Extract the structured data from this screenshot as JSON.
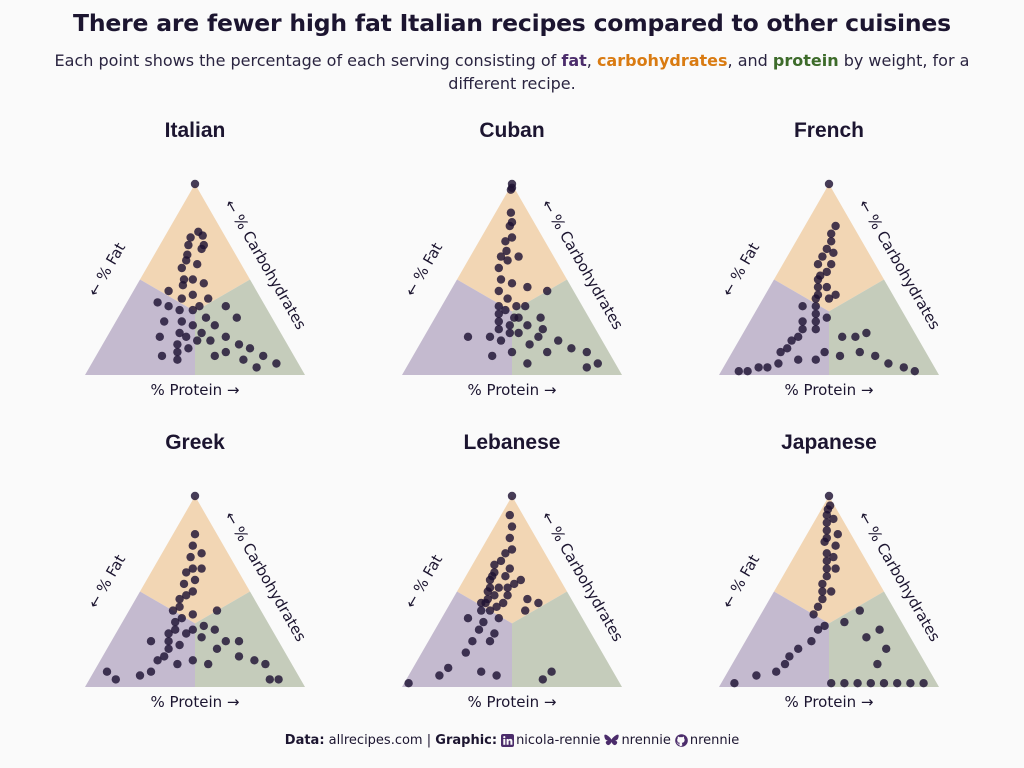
{
  "title": "There are fewer high fat Italian recipes compared to other cuisines",
  "subtitle": {
    "before": "Each point shows the percentage of each serving consisting of ",
    "fat": "fat",
    "sep1": ", ",
    "carbohydrates": "carbohydrates",
    "sep2": ", and ",
    "protein": "protein",
    "after": " by weight, for a different recipe."
  },
  "colors": {
    "fat_region": "#c4bacf",
    "carb_region": "#f2d6b4",
    "protein_region": "#c5ccbb",
    "point": "#1e1233",
    "fat_text": "#4b2c6b",
    "carb_text": "#d97b12",
    "protein_text": "#3d6b2a"
  },
  "axis_labels": {
    "fat": "← % Fat",
    "carbohydrates": "← % Carbohydrates",
    "protein": "% Protein →"
  },
  "chart_data": [
    {
      "type": "scatter",
      "subtype": "ternary",
      "title": "Italian",
      "axes": [
        "fat",
        "carbohydrates",
        "protein"
      ],
      "points": [
        [
          0,
          100,
          0
        ],
        [
          11,
          75,
          14
        ],
        [
          16,
          72,
          12
        ],
        [
          10,
          73,
          17
        ],
        [
          19,
          68,
          13
        ],
        [
          12,
          68,
          20
        ],
        [
          22,
          63,
          15
        ],
        [
          14,
          66,
          20
        ],
        [
          24,
          60,
          16
        ],
        [
          20,
          58,
          22
        ],
        [
          28,
          56,
          16
        ],
        [
          30,
          50,
          20
        ],
        [
          26,
          50,
          24
        ],
        [
          32,
          47,
          21
        ],
        [
          22,
          48,
          30
        ],
        [
          36,
          40,
          24
        ],
        [
          30,
          42,
          28
        ],
        [
          40,
          34,
          26
        ],
        [
          34,
          34,
          32
        ],
        [
          42,
          28,
          30
        ],
        [
          30,
          36,
          34
        ],
        [
          46,
          22,
          32
        ],
        [
          38,
          26,
          36
        ],
        [
          44,
          20,
          36
        ],
        [
          50,
          16,
          34
        ],
        [
          52,
          12,
          36
        ],
        [
          40,
          18,
          42
        ],
        [
          46,
          14,
          40
        ],
        [
          54,
          8,
          38
        ],
        [
          30,
          30,
          40
        ],
        [
          36,
          22,
          42
        ],
        [
          28,
          26,
          46
        ],
        [
          34,
          18,
          48
        ],
        [
          26,
          20,
          54
        ],
        [
          30,
          12,
          58
        ],
        [
          22,
          16,
          62
        ],
        [
          18,
          14,
          68
        ],
        [
          24,
          8,
          68
        ],
        [
          14,
          10,
          76
        ],
        [
          20,
          4,
          76
        ],
        [
          10,
          6,
          84
        ],
        [
          40,
          44,
          16
        ],
        [
          44,
          36,
          20
        ],
        [
          48,
          38,
          14
        ],
        [
          56,
          20,
          24
        ],
        [
          60,
          10,
          30
        ],
        [
          50,
          28,
          22
        ],
        [
          24,
          40,
          36
        ],
        [
          18,
          36,
          46
        ],
        [
          36,
          10,
          54
        ],
        [
          16,
          30,
          54
        ]
      ]
    },
    {
      "type": "scatter",
      "subtype": "ternary",
      "title": "Cuban",
      "axes": [
        "fat",
        "carbohydrates",
        "protein"
      ],
      "points": [
        [
          0,
          100,
          0
        ],
        [
          2,
          97,
          1
        ],
        [
          1,
          98,
          1
        ],
        [
          8,
          85,
          7
        ],
        [
          10,
          80,
          10
        ],
        [
          12,
          78,
          10
        ],
        [
          18,
          70,
          12
        ],
        [
          14,
          72,
          14
        ],
        [
          20,
          65,
          15
        ],
        [
          24,
          62,
          14
        ],
        [
          22,
          60,
          18
        ],
        [
          16,
          62,
          22
        ],
        [
          28,
          56,
          16
        ],
        [
          30,
          50,
          20
        ],
        [
          26,
          48,
          26
        ],
        [
          34,
          44,
          22
        ],
        [
          32,
          40,
          28
        ],
        [
          38,
          36,
          26
        ],
        [
          36,
          34,
          30
        ],
        [
          40,
          32,
          28
        ],
        [
          30,
          36,
          34
        ],
        [
          42,
          28,
          30
        ],
        [
          34,
          30,
          36
        ],
        [
          44,
          24,
          32
        ],
        [
          38,
          26,
          36
        ],
        [
          40,
          22,
          38
        ],
        [
          46,
          18,
          36
        ],
        [
          50,
          20,
          30
        ],
        [
          36,
          22,
          42
        ],
        [
          30,
          26,
          44
        ],
        [
          28,
          20,
          52
        ],
        [
          24,
          24,
          52
        ],
        [
          34,
          16,
          50
        ],
        [
          28,
          12,
          60
        ],
        [
          20,
          18,
          62
        ],
        [
          16,
          14,
          70
        ],
        [
          10,
          12,
          78
        ],
        [
          8,
          6,
          86
        ],
        [
          14,
          4,
          82
        ],
        [
          54,
          10,
          36
        ],
        [
          44,
          12,
          44
        ],
        [
          40,
          6,
          54
        ],
        [
          60,
          20,
          20
        ],
        [
          20,
          46,
          34
        ],
        [
          26,
          36,
          38
        ],
        [
          22,
          30,
          48
        ],
        [
          32,
          30,
          38
        ],
        [
          12,
          44,
          44
        ]
      ]
    },
    {
      "type": "scatter",
      "subtype": "ternary",
      "title": "French",
      "axes": [
        "fat",
        "carbohydrates",
        "protein"
      ],
      "points": [
        [
          0,
          100,
          0
        ],
        [
          8,
          78,
          14
        ],
        [
          12,
          74,
          14
        ],
        [
          14,
          70,
          16
        ],
        [
          18,
          66,
          16
        ],
        [
          16,
          64,
          20
        ],
        [
          22,
          62,
          16
        ],
        [
          20,
          58,
          22
        ],
        [
          26,
          58,
          16
        ],
        [
          24,
          54,
          22
        ],
        [
          28,
          52,
          20
        ],
        [
          30,
          50,
          20
        ],
        [
          32,
          46,
          22
        ],
        [
          28,
          46,
          26
        ],
        [
          34,
          42,
          24
        ],
        [
          36,
          40,
          24
        ],
        [
          30,
          40,
          30
        ],
        [
          38,
          36,
          26
        ],
        [
          26,
          42,
          32
        ],
        [
          40,
          32,
          28
        ],
        [
          42,
          28,
          30
        ],
        [
          36,
          30,
          34
        ],
        [
          44,
          24,
          32
        ],
        [
          50,
          24,
          26
        ],
        [
          54,
          20,
          26
        ],
        [
          58,
          18,
          24
        ],
        [
          62,
          14,
          24
        ],
        [
          70,
          6,
          24
        ],
        [
          76,
          4,
          20
        ],
        [
          80,
          4,
          16
        ],
        [
          86,
          2,
          12
        ],
        [
          90,
          2,
          8
        ],
        [
          52,
          8,
          40
        ],
        [
          46,
          12,
          42
        ],
        [
          40,
          10,
          50
        ],
        [
          30,
          12,
          58
        ],
        [
          24,
          10,
          66
        ],
        [
          20,
          6,
          74
        ],
        [
          14,
          4,
          82
        ],
        [
          10,
          2,
          88
        ],
        [
          28,
          20,
          52
        ],
        [
          34,
          20,
          46
        ],
        [
          22,
          22,
          56
        ],
        [
          48,
          28,
          24
        ],
        [
          44,
          36,
          20
        ],
        [
          60,
          8,
          32
        ],
        [
          66,
          12,
          22
        ]
      ]
    },
    {
      "type": "scatter",
      "subtype": "ternary",
      "title": "Greek",
      "axes": [
        "fat",
        "carbohydrates",
        "protein"
      ],
      "points": [
        [
          0,
          100,
          0
        ],
        [
          10,
          80,
          10
        ],
        [
          14,
          74,
          12
        ],
        [
          12,
          70,
          18
        ],
        [
          18,
          68,
          14
        ],
        [
          20,
          62,
          18
        ],
        [
          24,
          60,
          16
        ],
        [
          16,
          62,
          22
        ],
        [
          22,
          56,
          22
        ],
        [
          28,
          54,
          18
        ],
        [
          26,
          50,
          24
        ],
        [
          30,
          48,
          22
        ],
        [
          34,
          46,
          20
        ],
        [
          36,
          42,
          22
        ],
        [
          40,
          40,
          20
        ],
        [
          38,
          36,
          26
        ],
        [
          32,
          38,
          30
        ],
        [
          42,
          34,
          24
        ],
        [
          44,
          30,
          26
        ],
        [
          48,
          28,
          24
        ],
        [
          50,
          24,
          26
        ],
        [
          46,
          22,
          32
        ],
        [
          52,
          20,
          28
        ],
        [
          40,
          28,
          32
        ],
        [
          56,
          16,
          28
        ],
        [
          60,
          14,
          26
        ],
        [
          66,
          8,
          26
        ],
        [
          72,
          6,
          22
        ],
        [
          84,
          4,
          12
        ],
        [
          86,
          8,
          6
        ],
        [
          36,
          30,
          34
        ],
        [
          30,
          32,
          38
        ],
        [
          34,
          26,
          40
        ],
        [
          26,
          30,
          44
        ],
        [
          30,
          20,
          50
        ],
        [
          24,
          24,
          52
        ],
        [
          18,
          24,
          58
        ],
        [
          22,
          16,
          62
        ],
        [
          16,
          14,
          70
        ],
        [
          12,
          12,
          76
        ],
        [
          14,
          4,
          82
        ],
        [
          10,
          4,
          86
        ],
        [
          44,
          14,
          42
        ],
        [
          38,
          12,
          50
        ],
        [
          52,
          12,
          36
        ],
        [
          20,
          40,
          40
        ],
        [
          58,
          24,
          18
        ]
      ]
    },
    {
      "type": "scatter",
      "subtype": "ternary",
      "title": "Lebanese",
      "axes": [
        "fat",
        "carbohydrates",
        "protein"
      ],
      "points": [
        [
          0,
          100,
          0
        ],
        [
          6,
          90,
          4
        ],
        [
          8,
          84,
          8
        ],
        [
          12,
          78,
          10
        ],
        [
          14,
          72,
          14
        ],
        [
          18,
          70,
          12
        ],
        [
          22,
          66,
          12
        ],
        [
          20,
          62,
          18
        ],
        [
          26,
          64,
          10
        ],
        [
          28,
          60,
          12
        ],
        [
          24,
          58,
          18
        ],
        [
          30,
          58,
          12
        ],
        [
          32,
          56,
          12
        ],
        [
          34,
          52,
          14
        ],
        [
          30,
          52,
          18
        ],
        [
          36,
          50,
          14
        ],
        [
          38,
          46,
          16
        ],
        [
          34,
          48,
          18
        ],
        [
          40,
          44,
          16
        ],
        [
          42,
          44,
          14
        ],
        [
          28,
          48,
          24
        ],
        [
          32,
          44,
          24
        ],
        [
          36,
          42,
          22
        ],
        [
          40,
          40,
          20
        ],
        [
          26,
          52,
          22
        ],
        [
          22,
          54,
          24
        ],
        [
          18,
          56,
          26
        ],
        [
          44,
          40,
          16
        ],
        [
          46,
          34,
          20
        ],
        [
          50,
          30,
          20
        ],
        [
          48,
          24,
          28
        ],
        [
          56,
          24,
          20
        ],
        [
          62,
          18,
          20
        ],
        [
          74,
          10,
          16
        ],
        [
          80,
          6,
          14
        ],
        [
          96,
          2,
          2
        ],
        [
          60,
          8,
          32
        ],
        [
          54,
          6,
          40
        ],
        [
          34,
          4,
          62
        ],
        [
          28,
          8,
          64
        ],
        [
          16,
          44,
          40
        ],
        [
          20,
          46,
          34
        ],
        [
          24,
          40,
          36
        ],
        [
          38,
          36,
          26
        ],
        [
          44,
          28,
          28
        ],
        [
          52,
          36,
          12
        ]
      ]
    },
    {
      "type": "scatter",
      "subtype": "ternary",
      "title": "Japanese",
      "axes": [
        "fat",
        "carbohydrates",
        "protein"
      ],
      "points": [
        [
          0,
          100,
          0
        ],
        [
          2,
          95,
          3
        ],
        [
          4,
          93,
          3
        ],
        [
          6,
          90,
          4
        ],
        [
          4,
          88,
          8
        ],
        [
          8,
          86,
          6
        ],
        [
          10,
          82,
          8
        ],
        [
          6,
          80,
          14
        ],
        [
          12,
          78,
          10
        ],
        [
          14,
          76,
          10
        ],
        [
          10,
          74,
          16
        ],
        [
          16,
          70,
          14
        ],
        [
          14,
          68,
          18
        ],
        [
          18,
          66,
          16
        ],
        [
          20,
          62,
          18
        ],
        [
          16,
          62,
          22
        ],
        [
          22,
          58,
          20
        ],
        [
          26,
          54,
          20
        ],
        [
          24,
          50,
          26
        ],
        [
          28,
          50,
          22
        ],
        [
          30,
          46,
          24
        ],
        [
          34,
          42,
          24
        ],
        [
          38,
          38,
          24
        ],
        [
          36,
          32,
          32
        ],
        [
          40,
          30,
          30
        ],
        [
          46,
          24,
          30
        ],
        [
          54,
          20,
          26
        ],
        [
          60,
          16,
          24
        ],
        [
          64,
          12,
          24
        ],
        [
          70,
          8,
          22
        ],
        [
          80,
          6,
          14
        ],
        [
          92,
          2,
          6
        ],
        [
          48,
          2,
          50
        ],
        [
          42,
          2,
          56
        ],
        [
          36,
          2,
          62
        ],
        [
          30,
          2,
          68
        ],
        [
          24,
          2,
          74
        ],
        [
          18,
          2,
          80
        ],
        [
          12,
          2,
          86
        ],
        [
          6,
          2,
          92
        ],
        [
          20,
          26,
          54
        ],
        [
          14,
          20,
          66
        ],
        [
          22,
          12,
          66
        ],
        [
          12,
          30,
          58
        ],
        [
          16,
          40,
          44
        ],
        [
          26,
          34,
          40
        ]
      ]
    }
  ],
  "footer": {
    "data_label": "Data:",
    "data_source": "allrecipes.com",
    "separator": "|",
    "graphic_label": "Graphic:",
    "linkedin": "nicola-rennie",
    "bluesky": "nrennie",
    "github": "nrennie"
  }
}
